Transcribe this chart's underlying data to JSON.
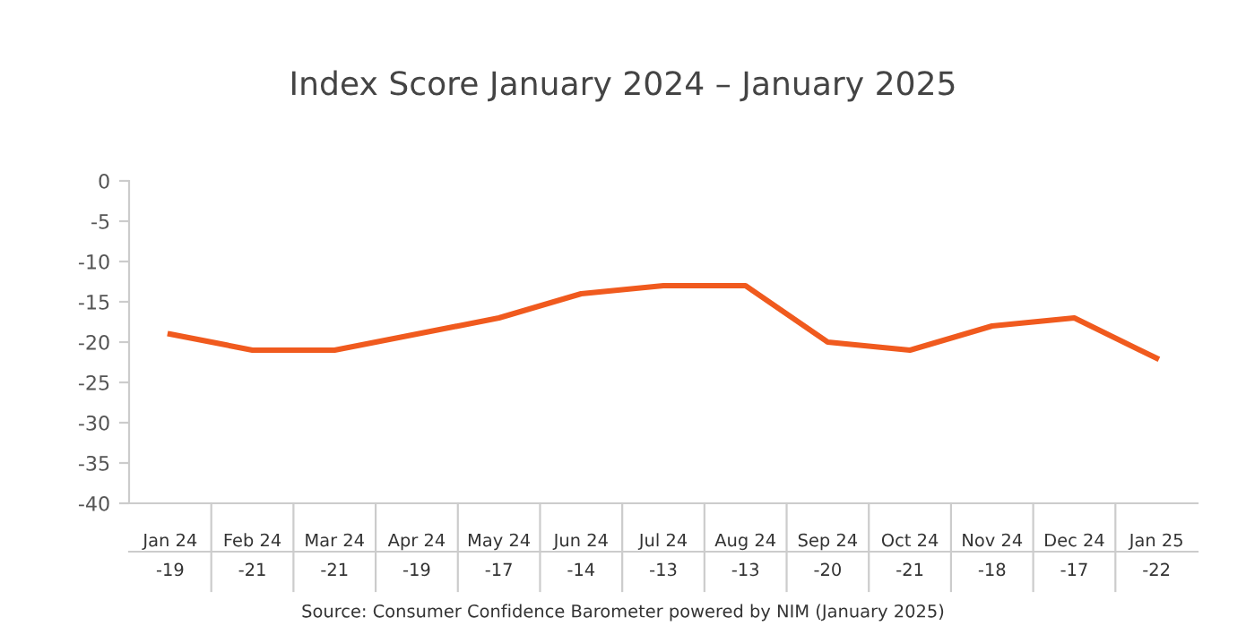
{
  "chart_data": {
    "type": "line",
    "title": "Index Score January 2024 – January 2025",
    "categories": [
      "Jan 24",
      "Feb 24",
      "Mar 24",
      "Apr 24",
      "May 24",
      "Jun 24",
      "Jul 24",
      "Aug 24",
      "Sep 24",
      "Oct 24",
      "Nov 24",
      "Dec 24",
      "Jan 25"
    ],
    "series": [
      {
        "color": "#f05a1e",
        "values": [
          -19,
          -21,
          -21,
          -19,
          -17,
          -14,
          -13,
          -13,
          -20,
          -21,
          -18,
          -17,
          -22
        ]
      }
    ],
    "ylim": [
      -40,
      0
    ],
    "yticks": [
      -40,
      -35,
      -30,
      -25,
      -20,
      -15,
      -10,
      -5,
      0
    ],
    "grid": false,
    "marker": "none",
    "line_style": "solid",
    "data_labels": true,
    "annotations": [
      "Source: Consumer Confidence Barometer powered by NIM (January 2025)"
    ]
  }
}
